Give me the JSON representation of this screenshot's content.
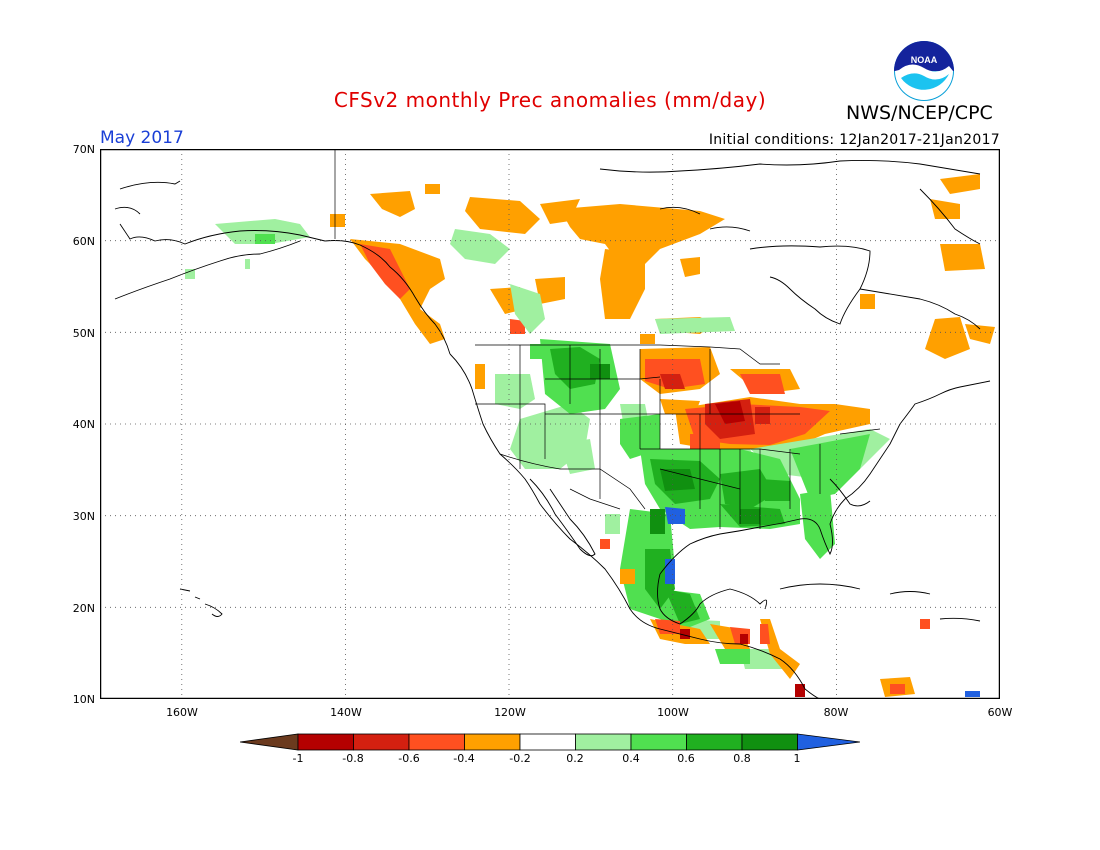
{
  "header": {
    "title": "CFSv2 monthly Prec anomalies (mm/day)",
    "agency": "NWS/NCEP/CPC",
    "logo_text": "NOAA",
    "valid_month": "May 2017",
    "initial_conditions": "Initial conditions: 12Jan2017-21Jan2017"
  },
  "axes": {
    "lat_labels": [
      "70N",
      "60N",
      "50N",
      "40N",
      "30N",
      "20N",
      "10N"
    ],
    "lon_labels": [
      "160W",
      "140W",
      "120W",
      "100W",
      "80W",
      "60W"
    ]
  },
  "colorbar": {
    "labels": [
      "-1",
      "-0.8",
      "-0.6",
      "-0.4",
      "-0.2",
      "0.2",
      "0.4",
      "0.6",
      "0.8",
      "1"
    ],
    "colors": [
      "#6b3a1e",
      "#b40000",
      "#d42010",
      "#ff5020",
      "#ffa000",
      "#ffffff",
      "#a0f0a0",
      "#50e050",
      "#20b020",
      "#109010",
      "#2060e0"
    ]
  },
  "colors": {
    "orange": "#ffa000",
    "red_orange": "#ff5020",
    "red": "#d42010",
    "dark_red": "#b40000",
    "light_green": "#a0f0a0",
    "green": "#50e050",
    "mid_green": "#20b020",
    "blue": "#2060e0"
  }
}
